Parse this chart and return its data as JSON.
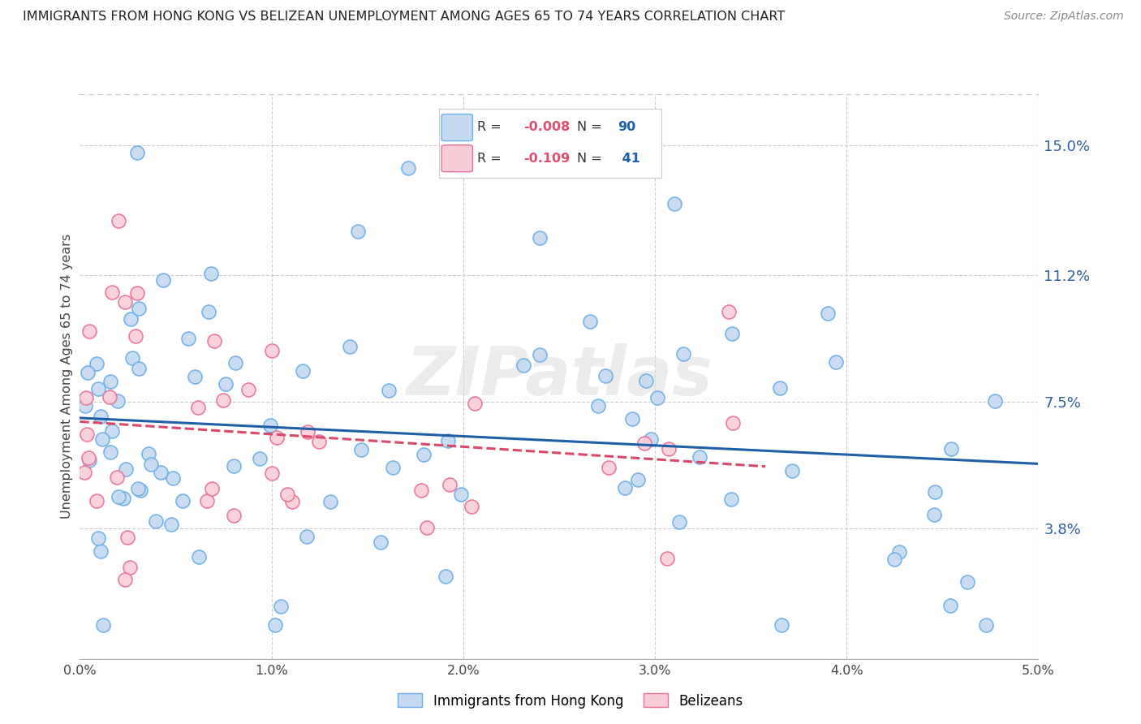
{
  "title": "IMMIGRANTS FROM HONG KONG VS BELIZEAN UNEMPLOYMENT AMONG AGES 65 TO 74 YEARS CORRELATION CHART",
  "source": "Source: ZipAtlas.com",
  "ylabel": "Unemployment Among Ages 65 to 74 years",
  "ytick_labels": [
    "15.0%",
    "11.2%",
    "7.5%",
    "3.8%"
  ],
  "ytick_values": [
    0.15,
    0.112,
    0.075,
    0.038
  ],
  "xtick_labels": [
    "0.0%",
    "1.0%",
    "2.0%",
    "3.0%",
    "4.0%",
    "5.0%"
  ],
  "xtick_values": [
    0.0,
    0.01,
    0.02,
    0.03,
    0.04,
    0.05
  ],
  "xmin": 0.0,
  "xmax": 0.05,
  "ymin": 0.0,
  "ymax": 0.165,
  "series1_color": "#c5d9f0",
  "series1_edge": "#6aaee8",
  "series2_color": "#f9cdd8",
  "series2_edge": "#e87098",
  "line1_color": "#1f5fa6",
  "line2_color": "#d9476a",
  "background_color": "#ffffff",
  "series1_label": "Immigrants from Hong Kong",
  "series2_label": "Belizeans",
  "grid_color": "#cccccc",
  "watermark": "ZIPatlas",
  "watermark_color": "#dddddd"
}
